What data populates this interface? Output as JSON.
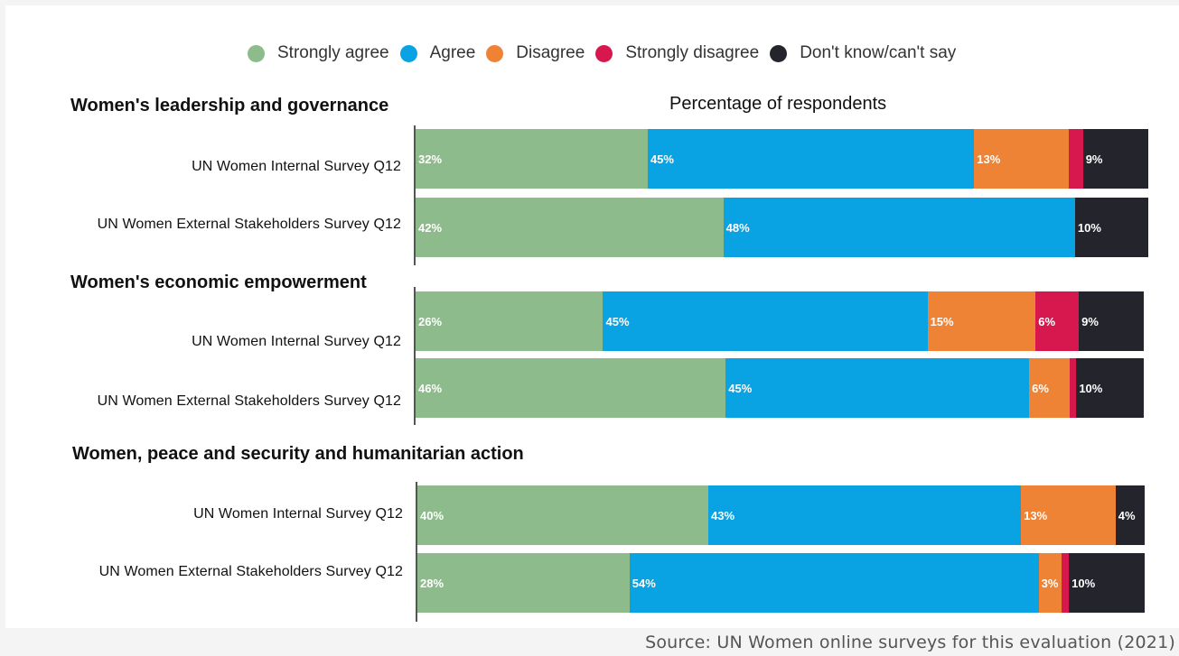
{
  "chart_data": {
    "type": "bar",
    "orientation": "horizontal",
    "stacked": true,
    "xlabel": "Percentage of respondents",
    "xlim": [
      0,
      100
    ],
    "legend_position": "top-center",
    "legend": [
      {
        "name": "Strongly agree",
        "color": "#8dbb8b"
      },
      {
        "name": "Agree",
        "color": "#09a2e2"
      },
      {
        "name": "Disagree",
        "color": "#ee8336"
      },
      {
        "name": "Strongly disagree",
        "color": "#d7184e"
      },
      {
        "name": "Don't know/can't say",
        "color": "#23242c"
      }
    ],
    "groups": [
      {
        "title": "Women's leadership and governance",
        "rows": [
          {
            "label": "UN Women Internal Survey Q12",
            "values": [
              32,
              45,
              13,
              2,
              9
            ],
            "labels": [
              "32%",
              "45%",
              "13%",
              "",
              "9%"
            ]
          },
          {
            "label": "UN Women External Stakeholders Survey Q12",
            "values": [
              42,
              48,
              0,
              0,
              10
            ],
            "labels": [
              "42%",
              "48%",
              "",
              "",
              "10%"
            ]
          }
        ]
      },
      {
        "title": "Women's economic empowerment",
        "rows": [
          {
            "label": "UN Women Internal Survey Q12",
            "values": [
              26,
              45,
              15,
              6,
              9
            ],
            "labels": [
              "26%",
              "45%",
              "15%",
              "6%",
              "9%"
            ]
          },
          {
            "label": "UN Women External Stakeholders Survey Q12",
            "values": [
              46,
              45,
              6,
              1,
              10
            ],
            "labels": [
              "46%",
              "45%",
              "6%",
              "",
              "10%"
            ]
          }
        ]
      },
      {
        "title": "Women, peace and security and humanitarian action",
        "rows": [
          {
            "label": "UN Women Internal Survey Q12",
            "values": [
              40,
              43,
              13,
              0,
              4
            ],
            "labels": [
              "40%",
              "43%",
              "13%",
              "",
              "4%"
            ]
          },
          {
            "label": "UN Women External Stakeholders Survey Q12",
            "values": [
              28,
              54,
              3,
              1,
              10
            ],
            "labels": [
              "28%",
              "54%",
              "3%",
              "",
              "10%"
            ]
          }
        ]
      }
    ]
  },
  "source": "Source: UN Women online surveys for this evaluation (2021)"
}
